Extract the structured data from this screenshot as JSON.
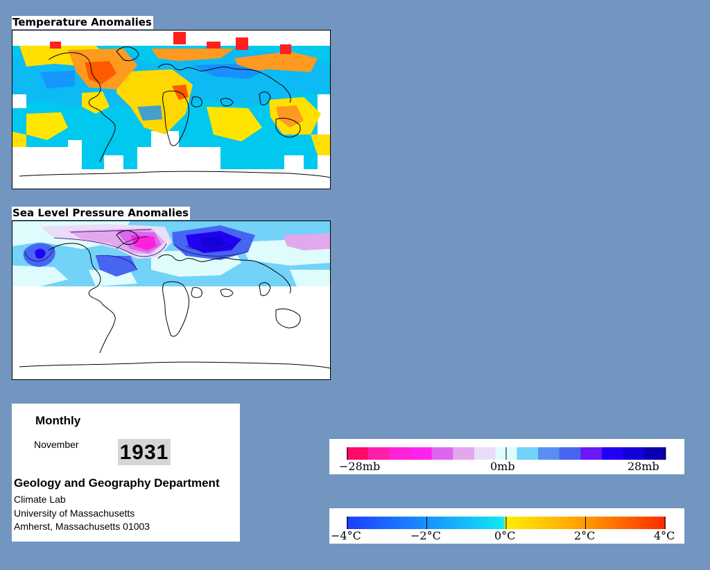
{
  "temperature_map": {
    "title": "Temperature Anomalies"
  },
  "pressure_map": {
    "title": "Sea Level Pressure Anomalies"
  },
  "info": {
    "period": "Monthly",
    "month": "November",
    "year": "1931",
    "department": "Geology and Geography Department",
    "lab": "Climate Lab",
    "university": "University of Massachusetts",
    "address": "Amherst, Massachusetts 01003"
  },
  "pressure_legend": {
    "labels": [
      "−28mb",
      "0mb",
      "28mb"
    ],
    "colors": [
      "#ff0a68",
      "#ff1ea8",
      "#ff22d8",
      "#ff22ee",
      "#dd66ee",
      "#e2a8ee",
      "#eaddf8",
      "#dffcfc",
      "#72d2f8",
      "#5a8ef4",
      "#4666f2",
      "#6a18f6",
      "#2200f4",
      "#1400d8",
      "#0a00b0"
    ]
  },
  "temperature_legend": {
    "labels": [
      "−4°C",
      "−2°C",
      "0°C",
      "2°C",
      "4°C"
    ],
    "colors": [
      "#1e3cff",
      "#1890ff",
      "#10c8f4",
      "#ffee00",
      "#ff9a00",
      "#ff2a00"
    ]
  }
}
